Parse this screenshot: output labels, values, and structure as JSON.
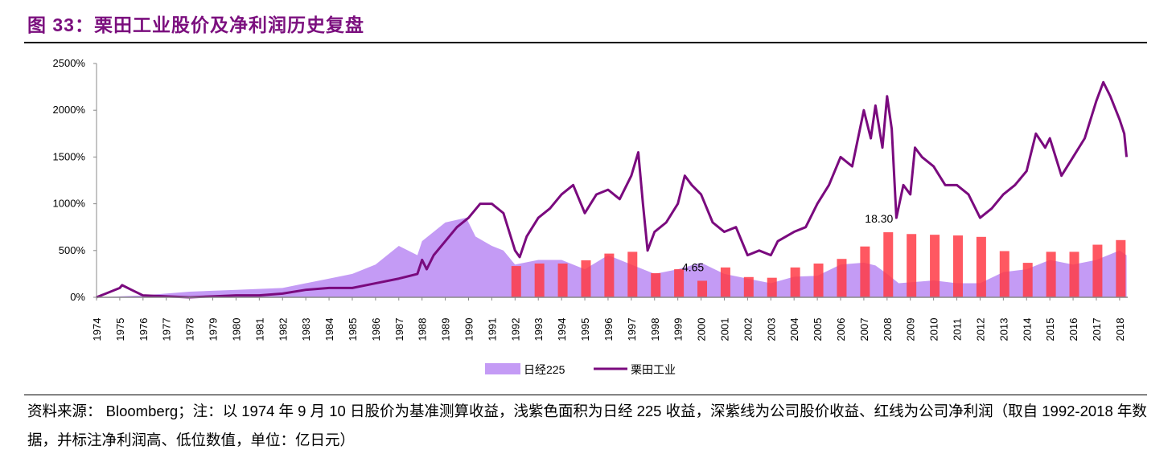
{
  "title": "图 33：栗田工业股价及净利润历史复盘",
  "note": "资料来源：  Bloomberg；注：以 1974 年 9 月 10 日股价为基准测算收益，浅紫色面积为日经 225 收益，深紫线为公司股价收益、红线为公司净利润（取自 1992-2018 年数据，并标注净利润高、低位数值，单位：亿日元）",
  "chart_data": {
    "type": "line+area+bar",
    "ylim": [
      0,
      2500
    ],
    "yticks": [
      "0%",
      "500%",
      "1000%",
      "1500%",
      "2000%",
      "2500%"
    ],
    "ytick_values": [
      0,
      500,
      1000,
      1500,
      2000,
      2500
    ],
    "xticks": [
      "1974",
      "1975",
      "1976",
      "1977",
      "1978",
      "1979",
      "1980",
      "1981",
      "1982",
      "1983",
      "1984",
      "1985",
      "1986",
      "1987",
      "1988",
      "1989",
      "1990",
      "1991",
      "1992",
      "1993",
      "1994",
      "1995",
      "1996",
      "1997",
      "1998",
      "1999",
      "2000",
      "2001",
      "2002",
      "2003",
      "2004",
      "2005",
      "2006",
      "2007",
      "2008",
      "2009",
      "2010",
      "2011",
      "2012",
      "2013",
      "2014",
      "2015",
      "2016",
      "2017",
      "2018"
    ],
    "legend": [
      "日经225",
      "栗田工业"
    ],
    "legend_position": "bottom",
    "colors": {
      "nikkei": "#c49bf5",
      "kurita": "#7a0a7e",
      "profit": "#ff3b45"
    },
    "series": [
      {
        "name": "日经225",
        "type": "area",
        "points": [
          [
            1974,
            0
          ],
          [
            1976,
            20
          ],
          [
            1978,
            60
          ],
          [
            1980,
            80
          ],
          [
            1982,
            100
          ],
          [
            1983,
            150
          ],
          [
            1984,
            200
          ],
          [
            1985,
            250
          ],
          [
            1986,
            350
          ],
          [
            1987,
            550
          ],
          [
            1987.8,
            450
          ],
          [
            1988,
            600
          ],
          [
            1989,
            800
          ],
          [
            1989.9,
            850
          ],
          [
            1990.3,
            650
          ],
          [
            1991,
            550
          ],
          [
            1991.5,
            500
          ],
          [
            1992,
            350
          ],
          [
            1993,
            400
          ],
          [
            1994,
            400
          ],
          [
            1995,
            300
          ],
          [
            1996,
            450
          ],
          [
            1997,
            350
          ],
          [
            1998,
            250
          ],
          [
            1999,
            300
          ],
          [
            2000,
            370
          ],
          [
            2001,
            250
          ],
          [
            2002,
            200
          ],
          [
            2003,
            150
          ],
          [
            2004,
            220
          ],
          [
            2005,
            230
          ],
          [
            2006,
            350
          ],
          [
            2007,
            370
          ],
          [
            2007.5,
            340
          ],
          [
            2008,
            250
          ],
          [
            2008.5,
            150
          ],
          [
            2009,
            160
          ],
          [
            2010,
            180
          ],
          [
            2011,
            150
          ],
          [
            2012,
            150
          ],
          [
            2013,
            270
          ],
          [
            2014,
            300
          ],
          [
            2015,
            400
          ],
          [
            2016,
            350
          ],
          [
            2017,
            400
          ],
          [
            2018,
            500
          ],
          [
            2018.3,
            450
          ]
        ]
      },
      {
        "name": "栗田工业",
        "type": "line",
        "points": [
          [
            1974,
            0
          ],
          [
            1975,
            100
          ],
          [
            1975.1,
            130
          ],
          [
            1975.5,
            80
          ],
          [
            1976,
            20
          ],
          [
            1977,
            10
          ],
          [
            1978,
            0
          ],
          [
            1979,
            10
          ],
          [
            1980,
            20
          ],
          [
            1981,
            20
          ],
          [
            1982,
            40
          ],
          [
            1983,
            80
          ],
          [
            1984,
            100
          ],
          [
            1985,
            100
          ],
          [
            1986,
            150
          ],
          [
            1987,
            200
          ],
          [
            1987.8,
            250
          ],
          [
            1988,
            400
          ],
          [
            1988.2,
            300
          ],
          [
            1988.5,
            450
          ],
          [
            1989,
            600
          ],
          [
            1989.5,
            750
          ],
          [
            1990,
            850
          ],
          [
            1990.5,
            1000
          ],
          [
            1991,
            1000
          ],
          [
            1991.5,
            900
          ],
          [
            1992,
            500
          ],
          [
            1992.2,
            430
          ],
          [
            1992.5,
            650
          ],
          [
            1993,
            850
          ],
          [
            1993.5,
            950
          ],
          [
            1994,
            1100
          ],
          [
            1994.5,
            1200
          ],
          [
            1995,
            900
          ],
          [
            1995.5,
            1100
          ],
          [
            1996,
            1150
          ],
          [
            1996.5,
            1050
          ],
          [
            1997,
            1300
          ],
          [
            1997.3,
            1550
          ],
          [
            1997.5,
            1000
          ],
          [
            1997.7,
            500
          ],
          [
            1998,
            700
          ],
          [
            1998.5,
            800
          ],
          [
            1999,
            1000
          ],
          [
            1999.3,
            1300
          ],
          [
            1999.6,
            1200
          ],
          [
            2000,
            1100
          ],
          [
            2000.5,
            800
          ],
          [
            2001,
            700
          ],
          [
            2001.5,
            750
          ],
          [
            2002,
            450
          ],
          [
            2002.5,
            500
          ],
          [
            2003,
            450
          ],
          [
            2003.3,
            600
          ],
          [
            2004,
            700
          ],
          [
            2004.5,
            750
          ],
          [
            2005,
            1000
          ],
          [
            2005.5,
            1200
          ],
          [
            2006,
            1500
          ],
          [
            2006.5,
            1400
          ],
          [
            2007,
            2000
          ],
          [
            2007.3,
            1700
          ],
          [
            2007.5,
            2050
          ],
          [
            2007.8,
            1600
          ],
          [
            2008,
            2150
          ],
          [
            2008.2,
            1800
          ],
          [
            2008.4,
            850
          ],
          [
            2008.7,
            1200
          ],
          [
            2009,
            1100
          ],
          [
            2009.2,
            1600
          ],
          [
            2009.5,
            1500
          ],
          [
            2010,
            1400
          ],
          [
            2010.5,
            1200
          ],
          [
            2011,
            1200
          ],
          [
            2011.5,
            1100
          ],
          [
            2012,
            850
          ],
          [
            2012.5,
            950
          ],
          [
            2013,
            1100
          ],
          [
            2013.5,
            1200
          ],
          [
            2014,
            1350
          ],
          [
            2014.4,
            1750
          ],
          [
            2014.8,
            1600
          ],
          [
            2015,
            1700
          ],
          [
            2015.5,
            1300
          ],
          [
            2016,
            1500
          ],
          [
            2016.5,
            1700
          ],
          [
            2017,
            2100
          ],
          [
            2017.3,
            2300
          ],
          [
            2017.6,
            2150
          ],
          [
            2018,
            1900
          ],
          [
            2018.2,
            1750
          ],
          [
            2018.3,
            1500
          ]
        ]
      }
    ],
    "profit": {
      "unit": "亿日元",
      "years": [
        1992,
        1993,
        1994,
        1995,
        1996,
        1997,
        1998,
        1999,
        2000,
        2001,
        2002,
        2003,
        2004,
        2005,
        2006,
        2007,
        2008,
        2009,
        2010,
        2011,
        2012,
        2013,
        2014,
        2015,
        2016,
        2017,
        2018
      ],
      "values": [
        8.8,
        9.5,
        9.5,
        10.4,
        12.3,
        12.8,
        6.8,
        7.9,
        4.65,
        8.4,
        5.7,
        5.5,
        8.4,
        9.5,
        10.8,
        14.3,
        18.3,
        17.8,
        17.6,
        17.4,
        17.0,
        13.0,
        9.7,
        12.8,
        12.8,
        14.8,
        16.1
      ],
      "labels": [
        {
          "year": 2000,
          "text": "4.65"
        },
        {
          "year": 2008,
          "text": "18.30"
        }
      ]
    }
  }
}
